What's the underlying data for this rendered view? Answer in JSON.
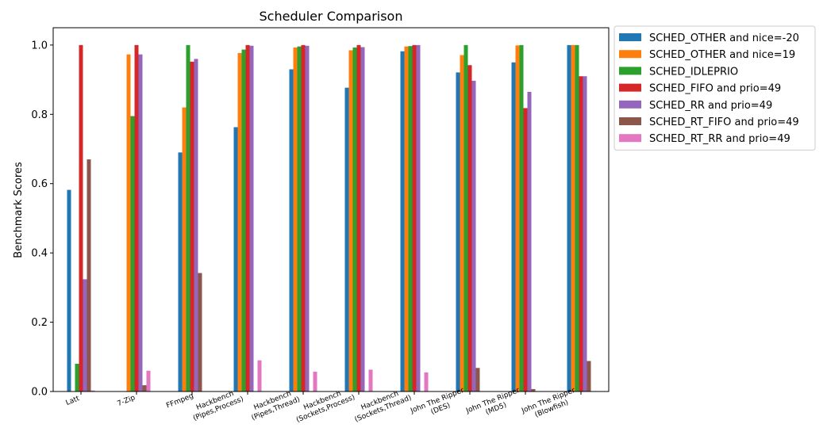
{
  "chart_data": {
    "type": "bar",
    "title": "Scheduler Comparison",
    "xlabel": "",
    "ylabel": "Benchmark Scores",
    "ylim": [
      0,
      1.05
    ],
    "yticks": [
      "0.0",
      "0.2",
      "0.4",
      "0.6",
      "0.8",
      "1.0"
    ],
    "grid": false,
    "legend_position": "outside-right",
    "categories": [
      "Latt",
      "7-Zip",
      "FFmpeg",
      "Hackbench\n(Pipes,Process)",
      "Hackbench\n(Pipes,Thread)",
      "Hackbench\n(Sockets,Process)",
      "Hackbench\n(Sockets,Thread)",
      "John The Ripper\n(DES)",
      "John The Ripper\n(MD5)",
      "John The Ripper\n(Blowfish)"
    ],
    "series": [
      {
        "name": "SCHED_OTHER and nice=-20",
        "color": "#1f77b4",
        "values": [
          0.582,
          0.0,
          0.69,
          0.763,
          0.93,
          0.877,
          0.982,
          0.921,
          0.95,
          1.0
        ]
      },
      {
        "name": "SCHED_OTHER and nice=19",
        "color": "#ff7f0e",
        "values": [
          0.0,
          0.973,
          0.82,
          0.977,
          0.993,
          0.985,
          0.996,
          0.971,
          0.999,
          1.0
        ]
      },
      {
        "name": "SCHED_IDLEPRIO",
        "color": "#2ca02c",
        "values": [
          0.08,
          0.795,
          1.0,
          0.987,
          0.996,
          0.993,
          0.997,
          1.0,
          1.0,
          1.0
        ]
      },
      {
        "name": "SCHED_FIFO and prio=49",
        "color": "#d62728",
        "values": [
          1.0,
          1.0,
          0.952,
          1.0,
          1.0,
          1.0,
          1.0,
          0.942,
          0.818,
          0.91
        ]
      },
      {
        "name": "SCHED_RR and prio=49",
        "color": "#9467bd",
        "values": [
          0.324,
          0.973,
          0.96,
          0.998,
          0.998,
          0.994,
          1.0,
          0.897,
          0.865,
          0.91
        ]
      },
      {
        "name": "SCHED_RT_FIFO and prio=49",
        "color": "#8c564b",
        "values": [
          0.67,
          0.018,
          0.342,
          0.0,
          0.0,
          0.0,
          0.0,
          0.068,
          0.007,
          0.088
        ]
      },
      {
        "name": "SCHED_RT_RR and prio=49",
        "color": "#e377c2",
        "values": [
          0.003,
          0.06,
          0.0,
          0.09,
          0.057,
          0.063,
          0.055,
          0.0,
          0.0,
          0.0
        ]
      }
    ]
  }
}
